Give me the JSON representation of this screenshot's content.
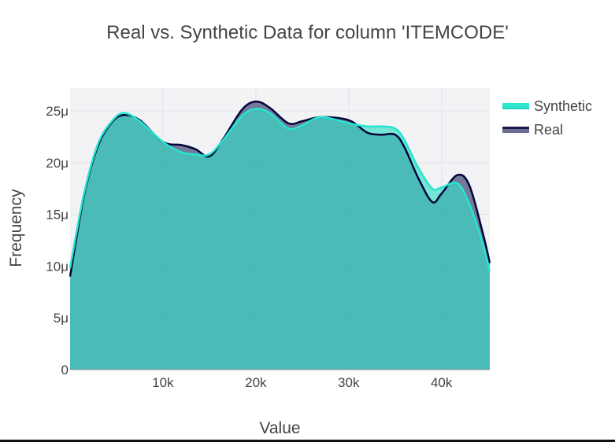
{
  "chart_data": {
    "type": "area",
    "title": "Real vs. Synthetic Data for column 'ITEMCODE'",
    "xlabel": "Value",
    "ylabel": "Frequency",
    "xlim": [
      0,
      45200
    ],
    "ylim": [
      0,
      2.72e-05
    ],
    "x_ticks": [
      10000,
      20000,
      30000,
      40000
    ],
    "x_tick_labels": [
      "10k",
      "20k",
      "30k",
      "40k"
    ],
    "y_ticks": [
      0,
      5e-06,
      1e-05,
      1.5e-05,
      2e-05,
      2.5e-05
    ],
    "y_tick_labels": [
      "0",
      "5μ",
      "10μ",
      "15μ",
      "20μ",
      "25μ"
    ],
    "grid": true,
    "legend_position": "top-right, outside plot",
    "x": [
      0,
      1500,
      3000,
      4500,
      5800,
      7500,
      10000,
      12000,
      13500,
      15000,
      16500,
      18500,
      20000,
      21500,
      23500,
      25000,
      27000,
      30000,
      32000,
      33500,
      35000,
      36000,
      37500,
      39000,
      40000,
      41700,
      43000,
      44500,
      45200
    ],
    "series": [
      {
        "name": "Synthetic",
        "color": "#26E6CF",
        "fill": "rgba(52, 222, 197, 0.66)",
        "values": [
          9.8,
          17.0,
          21.8,
          24.0,
          24.8,
          24.0,
          22.0,
          21.0,
          20.8,
          20.8,
          22.2,
          24.5,
          25.2,
          24.8,
          23.3,
          23.6,
          24.4,
          23.8,
          23.5,
          23.5,
          23.3,
          22.2,
          19.5,
          17.5,
          17.6,
          18.0,
          16.0,
          12.0,
          9.5
        ]
      },
      {
        "name": "Real",
        "color": "#01053A",
        "fill": "rgba(40, 44, 100, 0.62)",
        "values": [
          9.0,
          16.8,
          21.6,
          23.9,
          24.6,
          24.1,
          22.0,
          21.7,
          21.3,
          20.6,
          22.3,
          25.1,
          25.9,
          25.3,
          23.8,
          24.0,
          24.4,
          24.1,
          22.9,
          22.7,
          22.7,
          21.5,
          18.5,
          16.2,
          17.0,
          18.8,
          17.8,
          13.0,
          10.3
        ]
      }
    ],
    "value_unit": "μ (1e-6)"
  },
  "legend": {
    "items": [
      {
        "label": "Synthetic",
        "color": "#2CE6CF"
      },
      {
        "label": "Real",
        "color": "#1A1C4F"
      }
    ]
  },
  "colors": {
    "plot_bg": "#F3F3F6",
    "grid": "#E3E3E8",
    "overlap_fill": "#3EACAE",
    "text": "#444444"
  }
}
